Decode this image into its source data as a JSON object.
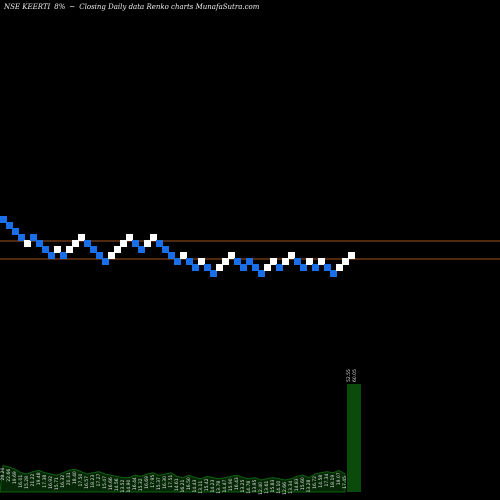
{
  "header": {
    "symbol": "NSE KEERTI",
    "change": "8%",
    "marker": "~",
    "caption": "Closing Daily data  Renko  charts MunafaSutra.com"
  },
  "chart_data": {
    "type": "renko",
    "title": "NSE KEERTI 8% ~ Closing Daily data Renko charts MunafaSutra.com",
    "y_levels": [
      19,
      18,
      17,
      16,
      15,
      14,
      13,
      12,
      11,
      10,
      9
    ],
    "reference_lines": [
      {
        "y": 15.5,
        "color": "#a0521d"
      },
      {
        "y": 12.5,
        "color": "#a0521d"
      }
    ],
    "bricks": [
      {
        "i": 0,
        "y": 19,
        "dir": "down"
      },
      {
        "i": 1,
        "y": 18,
        "dir": "down"
      },
      {
        "i": 2,
        "y": 17,
        "dir": "down"
      },
      {
        "i": 3,
        "y": 16,
        "dir": "down"
      },
      {
        "i": 4,
        "y": 15,
        "dir": "up"
      },
      {
        "i": 5,
        "y": 16,
        "dir": "down"
      },
      {
        "i": 6,
        "y": 15,
        "dir": "down"
      },
      {
        "i": 7,
        "y": 14,
        "dir": "down"
      },
      {
        "i": 8,
        "y": 13,
        "dir": "down"
      },
      {
        "i": 9,
        "y": 14,
        "dir": "up"
      },
      {
        "i": 10,
        "y": 13,
        "dir": "down"
      },
      {
        "i": 11,
        "y": 14,
        "dir": "up"
      },
      {
        "i": 12,
        "y": 15,
        "dir": "up"
      },
      {
        "i": 13,
        "y": 16,
        "dir": "up"
      },
      {
        "i": 14,
        "y": 15,
        "dir": "down"
      },
      {
        "i": 15,
        "y": 14,
        "dir": "down"
      },
      {
        "i": 16,
        "y": 13,
        "dir": "down"
      },
      {
        "i": 17,
        "y": 12,
        "dir": "down"
      },
      {
        "i": 18,
        "y": 13,
        "dir": "up"
      },
      {
        "i": 19,
        "y": 14,
        "dir": "up"
      },
      {
        "i": 20,
        "y": 15,
        "dir": "up"
      },
      {
        "i": 21,
        "y": 16,
        "dir": "up"
      },
      {
        "i": 22,
        "y": 15,
        "dir": "down"
      },
      {
        "i": 23,
        "y": 14,
        "dir": "down"
      },
      {
        "i": 24,
        "y": 15,
        "dir": "up"
      },
      {
        "i": 25,
        "y": 16,
        "dir": "up"
      },
      {
        "i": 26,
        "y": 15,
        "dir": "down"
      },
      {
        "i": 27,
        "y": 14,
        "dir": "down"
      },
      {
        "i": 28,
        "y": 13,
        "dir": "down"
      },
      {
        "i": 29,
        "y": 12,
        "dir": "down"
      },
      {
        "i": 30,
        "y": 13,
        "dir": "up"
      },
      {
        "i": 31,
        "y": 12,
        "dir": "down"
      },
      {
        "i": 32,
        "y": 11,
        "dir": "down"
      },
      {
        "i": 33,
        "y": 12,
        "dir": "up"
      },
      {
        "i": 34,
        "y": 11,
        "dir": "down"
      },
      {
        "i": 35,
        "y": 10,
        "dir": "down"
      },
      {
        "i": 36,
        "y": 11,
        "dir": "up"
      },
      {
        "i": 37,
        "y": 12,
        "dir": "up"
      },
      {
        "i": 38,
        "y": 13,
        "dir": "up"
      },
      {
        "i": 39,
        "y": 12,
        "dir": "down"
      },
      {
        "i": 40,
        "y": 11,
        "dir": "down"
      },
      {
        "i": 41,
        "y": 12,
        "dir": "down"
      },
      {
        "i": 42,
        "y": 11,
        "dir": "down"
      },
      {
        "i": 43,
        "y": 10,
        "dir": "down"
      },
      {
        "i": 44,
        "y": 11,
        "dir": "up"
      },
      {
        "i": 45,
        "y": 12,
        "dir": "up"
      },
      {
        "i": 46,
        "y": 11,
        "dir": "down"
      },
      {
        "i": 47,
        "y": 12,
        "dir": "up"
      },
      {
        "i": 48,
        "y": 13,
        "dir": "up"
      },
      {
        "i": 49,
        "y": 12,
        "dir": "down"
      },
      {
        "i": 50,
        "y": 11,
        "dir": "down"
      },
      {
        "i": 51,
        "y": 12,
        "dir": "up"
      },
      {
        "i": 52,
        "y": 11,
        "dir": "down"
      },
      {
        "i": 53,
        "y": 12,
        "dir": "up"
      },
      {
        "i": 54,
        "y": 11,
        "dir": "down"
      },
      {
        "i": 55,
        "y": 10,
        "dir": "down"
      },
      {
        "i": 56,
        "y": 11,
        "dir": "up"
      },
      {
        "i": 57,
        "y": 12,
        "dir": "up"
      },
      {
        "i": 58,
        "y": 13,
        "dir": "up"
      }
    ],
    "volume": {
      "labels": [
        "28.20",
        "22.66",
        "19.69",
        "16.01",
        "15.28",
        "21.22",
        "19.48",
        "17.38",
        "16.92",
        "15.71",
        "16.32",
        "20.31",
        "18.40",
        "17.50",
        "16.57",
        "18.23",
        "17.27",
        "15.47",
        "16.66",
        "14.56",
        "13.52",
        "14.90",
        "16.44",
        "15.32",
        "16.69",
        "17.95",
        "15.37",
        "16.30",
        "17.51",
        "14.61",
        "16.21",
        "16.50",
        "14.43",
        "13.11",
        "15.42",
        "14.23",
        "13.78",
        "14.47",
        "15.90",
        "16.43",
        "13.25",
        "14.78",
        "13.95",
        "12.40",
        "13.61",
        "15.83",
        "14.10",
        "12.66",
        "13.34",
        "14.83",
        "15.60",
        "13.28",
        "16.72",
        "14.58",
        "17.34",
        "18.19",
        "19.07",
        "17.45",
        "52.55"
      ],
      "top_label": "60.05",
      "heights": [
        0.22,
        0.21,
        0.19,
        0.16,
        0.15,
        0.17,
        0.18,
        0.16,
        0.15,
        0.14,
        0.16,
        0.18,
        0.19,
        0.17,
        0.15,
        0.16,
        0.17,
        0.15,
        0.14,
        0.13,
        0.12,
        0.12,
        0.14,
        0.13,
        0.15,
        0.16,
        0.14,
        0.15,
        0.16,
        0.13,
        0.12,
        0.14,
        0.12,
        0.11,
        0.13,
        0.12,
        0.11,
        0.12,
        0.13,
        0.14,
        0.12,
        0.11,
        0.12,
        0.1,
        0.11,
        0.12,
        0.11,
        0.1,
        0.11,
        0.13,
        0.14,
        0.12,
        0.15,
        0.16,
        0.17,
        0.16,
        0.18,
        0.15,
        0.9
      ]
    },
    "colors": {
      "background": "#000000",
      "up": "#ffffff",
      "down": "#1a6fe8",
      "ref_line": "#a0521d",
      "volume_fill": "#062806",
      "volume_bright": "#0a4a0a",
      "volume_stroke": "#0f5f0f"
    }
  }
}
